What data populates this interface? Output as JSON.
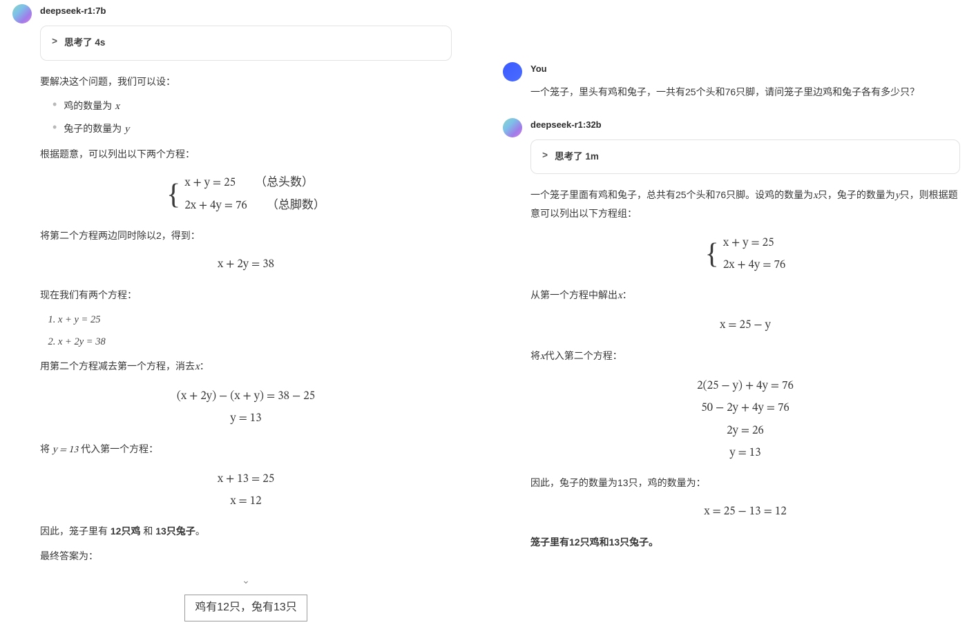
{
  "colors": {
    "text": "#373737",
    "muted": "#b8b8b8",
    "border": "#e2e2e2",
    "math": "#3a3a3a",
    "boxborder": "#9a9a9a",
    "background": "#ffffff"
  },
  "typography": {
    "body_fontsize": 14,
    "math_fontsize": 17,
    "name_fontsize": 13,
    "name_weight": 700
  },
  "left": {
    "model": "deepseek-r1:7b",
    "think": "思考了 4s",
    "p_intro": "要解决这个问题，我们可以设：",
    "b1_pre": "鸡的数量为 ",
    "b1_var": "x",
    "b2_pre": "兔子的数量为 ",
    "b2_var": "y",
    "p_eqintro": "根据题意，可以列出以下两个方程：",
    "eq1": "x + y = 25",
    "eq1_note": "（总头数）",
    "eq2": "2x + 4y = 76",
    "eq2_note": "（总脚数）",
    "p_div2": "将第二个方程两边同时除以2，得到：",
    "eq3": "x + 2y = 38",
    "p_two": "现在我们有两个方程：",
    "li1": "x + y = 25",
    "li2": "x + 2y = 38",
    "p_sub_pre": "用第二个方程减去第一个方程，消去",
    "p_sub_var": "x",
    "p_sub_post": "：",
    "eq4a": "(x + 2y) − (x + y) = 38 − 25",
    "eq4b": "y = 13",
    "p_back_pre": "将 ",
    "p_back_eq": "y = 13",
    "p_back_post": " 代入第一个方程：",
    "eq5a": "x + 13 = 25",
    "eq5b": "x = 12",
    "p_concl_pre": "因此，笼子里有 ",
    "p_concl_b1": "12只鸡",
    "p_concl_mid": " 和 ",
    "p_concl_b2": "13只兔子",
    "p_concl_post": "。",
    "p_final": "最终答案为：",
    "scroll_glyph": "⌄",
    "answer_box": "鸡有12只，兔有13只"
  },
  "right": {
    "user_label": "You",
    "user_msg": "一个笼子，里头有鸡和兔子，一共有25个头和76只脚，请问笼子里边鸡和兔子各有多少只？",
    "model": "deepseek-r1:32b",
    "think": "思考了 1m",
    "p_intro_a": "一个笼子里面有鸡和兔子，总共有25个头和76只脚。设鸡的数量为",
    "p_intro_var1": "x",
    "p_intro_b": "只，兔子的数量为",
    "p_intro_var2": "y",
    "p_intro_c": "只，则根据题意可以列出以下方程组：",
    "eq1": "x + y = 25",
    "eq2": "2x + 4y = 76",
    "p_solve_pre": "从第一个方程中解出",
    "p_solve_var": "x",
    "p_solve_post": "：",
    "eq3": "x = 25 − y",
    "p_subst_pre": "将",
    "p_subst_var": "x",
    "p_subst_post": "代入第二个方程：",
    "eq4a": "2(25 − y) + 4y = 76",
    "eq4b": "50 − 2y + 4y = 76",
    "eq4c": "2y = 26",
    "eq4d": "y = 13",
    "p_rabbit": "因此，兔子的数量为13只，鸡的数量为：",
    "eq5": "x = 25 − 13 = 12",
    "p_final": "笼子里有12只鸡和13只兔子。"
  }
}
